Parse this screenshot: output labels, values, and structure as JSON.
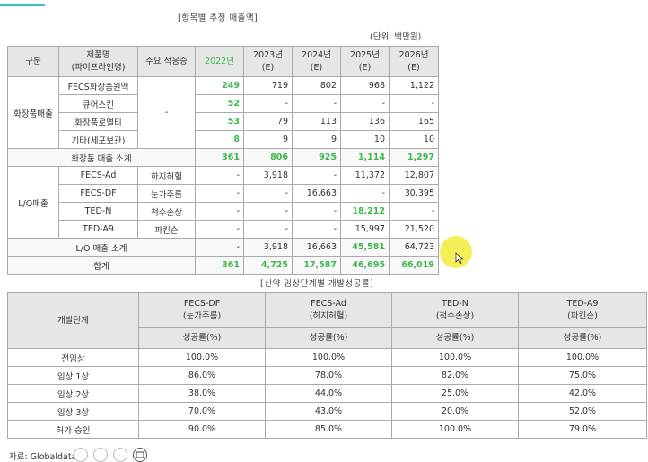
{
  "table1": {
    "title": "[항목별 추정 매출액]",
    "unit": "(단위: 백만원)",
    "headers": [
      "구분",
      "제품명\n(파이프라인명)",
      "주요 적응증",
      "2022년",
      "2023년(E)",
      "2024년(E)",
      "2025년(E)",
      "2026년(E)"
    ],
    "cosmetics": {
      "group": "화장품매출",
      "indication": "-",
      "rows": [
        {
          "name": "FECS화장품원액",
          "v": [
            "249",
            "719",
            "802",
            "968",
            "1,122"
          ]
        },
        {
          "name": "큐어스킨",
          "v": [
            "52",
            "-",
            "-",
            "-",
            "-"
          ]
        },
        {
          "name": "화장품로열티",
          "v": [
            "53",
            "79",
            "113",
            "136",
            "165"
          ]
        },
        {
          "name": "기타(세포보관)",
          "v": [
            "8",
            "9",
            "9",
            "10",
            "10"
          ]
        }
      ],
      "subtotal": {
        "label": "화장품 매출 소계",
        "v": [
          "361",
          "806",
          "925",
          "1,114",
          "1,297"
        ]
      }
    },
    "lo": {
      "group": "L/O매출",
      "rows": [
        {
          "name": "FECS-Ad",
          "ind": "하지허혈",
          "v": [
            "-",
            "3,918",
            "-",
            "11,372",
            "12,807"
          ]
        },
        {
          "name": "FECS-DF",
          "ind": "눈가주름",
          "v": [
            "-",
            "-",
            "16,663",
            "-",
            "30,395"
          ]
        },
        {
          "name": "TED-N",
          "ind": "척수손상",
          "v": [
            "-",
            "-",
            "-",
            "18,212",
            "-"
          ]
        },
        {
          "name": "TED-A9",
          "ind": "파킨슨",
          "v": [
            "-",
            "-",
            "-",
            "15,997",
            "21,520"
          ]
        }
      ],
      "subtotal": {
        "label": "L/O 매출 소계",
        "v": [
          "-",
          "3,918",
          "16,663",
          "45,581",
          "64,723"
        ]
      }
    },
    "total": {
      "label": "합계",
      "v": [
        "361",
        "4,725",
        "17,587",
        "46,695",
        "66,019"
      ]
    }
  },
  "table2": {
    "title": "[신약 임상단계별 개발성공률]",
    "stage_header": "개발단계",
    "products": [
      {
        "name": "FECS-DF",
        "ind": "(눈가주름)"
      },
      {
        "name": "FECS-Ad",
        "ind": "(하지허혈)"
      },
      {
        "name": "TED-N",
        "ind": "(척수손상)"
      },
      {
        "name": "TED-A9",
        "ind": "(파킨슨)"
      }
    ],
    "rate_label": "성공률(%)",
    "rows": [
      {
        "stage": "전임상",
        "v": [
          "100.0%",
          "100.0%",
          "100.0%",
          "100.0%"
        ]
      },
      {
        "stage": "임상 1상",
        "v": [
          "86.0%",
          "78.0%",
          "82.0%",
          "75.0%"
        ]
      },
      {
        "stage": "임상 2상",
        "v": [
          "38.0%",
          "44.0%",
          "25.0%",
          "42.0%"
        ]
      },
      {
        "stage": "임상 3상",
        "v": [
          "70.0%",
          "43.0%",
          "20.0%",
          "52.0%"
        ]
      },
      {
        "stage": "허가 승인",
        "v": [
          "90.0%",
          "85.0%",
          "100.0%",
          "79.0%"
        ]
      }
    ]
  },
  "source": "자료: Globaldata",
  "colors": {
    "accent": "#34c5c3",
    "highlight": "#3cb84c",
    "cursor": "#f3ec3a"
  }
}
